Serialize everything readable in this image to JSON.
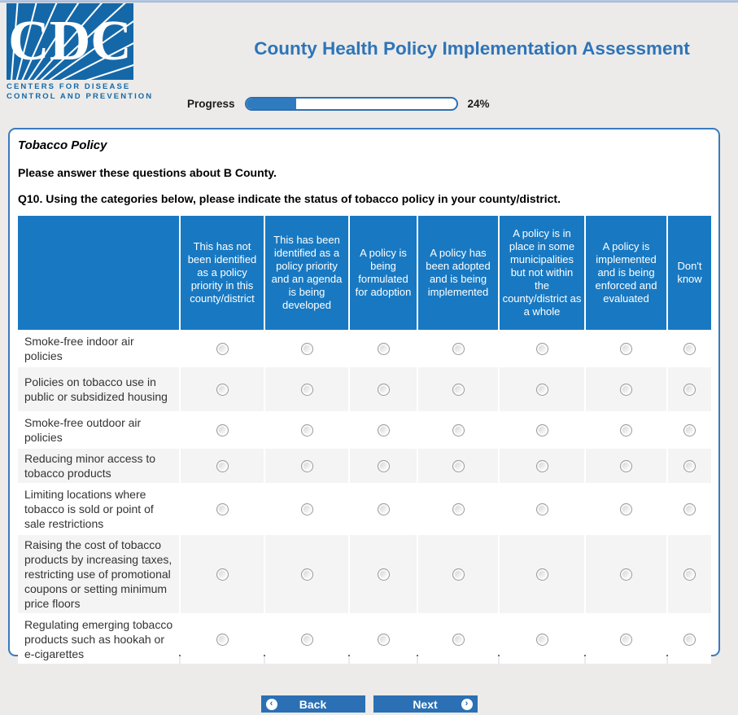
{
  "page": {
    "title": "County Health Policy Implementation Assessment"
  },
  "logo": {
    "acronym": "CDC",
    "line1": "CENTERS FOR DISEASE",
    "line2": "CONTROL AND PREVENTION"
  },
  "progress": {
    "label": "Progress",
    "percent": 24,
    "percent_label": "24%"
  },
  "section": {
    "heading": "Tobacco Policy",
    "instruction": "Please answer these questions about B County.",
    "question_number": "Q10.",
    "question_text": " Using the categories below, please indicate the status of tobacco policy in your county/district."
  },
  "matrix": {
    "columns": [
      "This has not been identified as a policy priority in this county/district",
      "This has been identified as a policy priority and an agenda is being developed",
      "A policy is being formulated for adoption",
      "A policy has been adopted and is being implemented",
      "A policy is in place in some municipalities but not within the county/district as a whole",
      "A policy is implemented and is being enforced and evaluated",
      "Don't know"
    ],
    "rows": [
      "Smoke-free indoor air policies",
      "Policies on tobacco use in public or subsidized housing",
      "Smoke-free outdoor air policies",
      "Reducing minor access to tobacco products",
      "Limiting locations where tobacco is sold or point of sale restrictions",
      "Raising the cost of tobacco products by increasing taxes, restricting use of promotional coupons or setting minimum price floors",
      "Regulating emerging tobacco products such as hookah or e-cigarettes"
    ]
  },
  "footer": {
    "back_label": "Back",
    "next_label": "Next",
    "back_icon": "‹",
    "next_icon": "›"
  },
  "colors": {
    "header_blue": "#1879c2",
    "title_blue": "#2e74b8",
    "button_blue": "#2b70b4",
    "logo_blue": "#1568a8",
    "panel_border": "#3a7abf",
    "row_stripe": "#f4f4f4",
    "progress_fill": "#2e7cbf"
  }
}
